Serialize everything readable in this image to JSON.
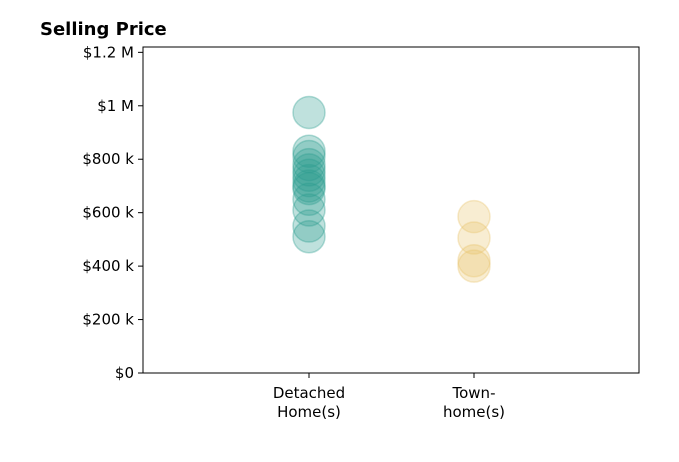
{
  "chart_data": {
    "type": "scatter",
    "title": "Selling Price",
    "xlabel": "",
    "ylabel": "",
    "ylim": [
      0,
      1220000
    ],
    "grid": false,
    "categories": [
      {
        "label_lines": [
          "Detached",
          "Home(s)"
        ]
      },
      {
        "label_lines": [
          "Town-",
          "home(s)"
        ]
      }
    ],
    "y_ticks": [
      {
        "value": 0,
        "label": "$0"
      },
      {
        "value": 200000,
        "label": "$200 k"
      },
      {
        "value": 400000,
        "label": "$400 k"
      },
      {
        "value": 600000,
        "label": "$600 k"
      },
      {
        "value": 800000,
        "label": "$800 k"
      },
      {
        "value": 1000000,
        "label": "$1 M"
      },
      {
        "value": 1200000,
        "label": "$1.2 M"
      }
    ],
    "series": [
      {
        "category_index": 0,
        "color": "#2a9d8f",
        "values": [
          975000,
          830000,
          810000,
          780000,
          760000,
          740000,
          720000,
          700000,
          690000,
          650000,
          610000,
          550000,
          510000
        ]
      },
      {
        "category_index": 1,
        "color": "#e9c46a",
        "values": [
          585000,
          505000,
          420000,
          400000
        ]
      }
    ]
  }
}
